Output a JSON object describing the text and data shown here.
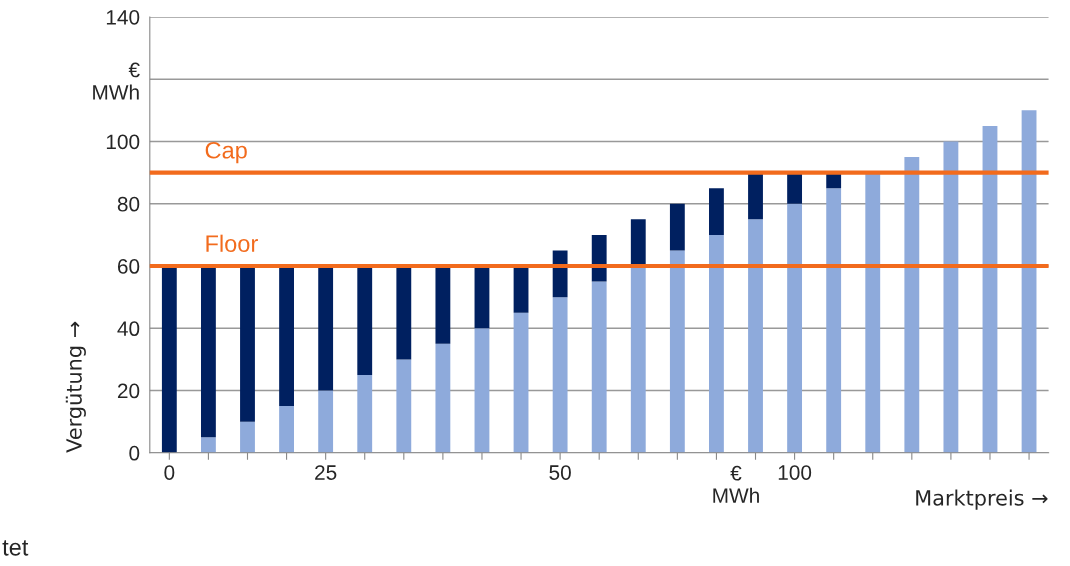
{
  "chart_data": {
    "type": "bar",
    "stacked": true,
    "xlabel": "Marktpreis →",
    "ylabel": "Vergütung →",
    "categories": [
      "0",
      null,
      null,
      null,
      "25",
      null,
      null,
      null,
      null,
      null,
      "50",
      null,
      null,
      null,
      null,
      null,
      "100",
      null,
      null,
      null,
      null,
      null,
      null
    ],
    "series": [
      {
        "color": "#8eaadb",
        "values": [
          0,
          5,
          10,
          15,
          20,
          25,
          30,
          35,
          40,
          45,
          50,
          55,
          60,
          65,
          70,
          75,
          80,
          85,
          90,
          95,
          100,
          105,
          110
        ]
      },
      {
        "color": "#002060",
        "values": [
          60,
          55,
          50,
          45,
          40,
          35,
          30,
          25,
          20,
          15,
          15,
          15,
          15,
          15,
          15,
          15,
          10,
          5,
          null,
          null,
          null,
          null,
          null
        ]
      }
    ],
    "ylim": [
      0,
      140
    ],
    "yticks": [
      0,
      20,
      40,
      60,
      80,
      100,
      {
        "value": 120,
        "label": "€\nMWh"
      },
      140
    ],
    "grid": "y",
    "ref_lines": [
      {
        "axis": "y",
        "value": 60,
        "label": "Floor",
        "color": "#f26b1d"
      },
      {
        "axis": "y",
        "value": 90,
        "label": "Cap",
        "color": "#f26b1d"
      }
    ],
    "annotations": [
      "€\nMWh",
      "tet"
    ],
    "legend": false
  }
}
